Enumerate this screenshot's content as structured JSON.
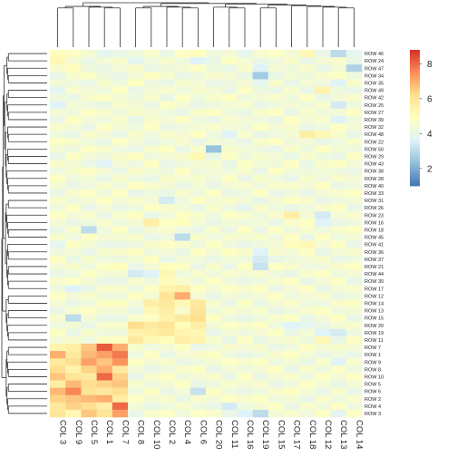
{
  "chart_data": {
    "type": "heatmap",
    "title": "",
    "xlabel": "",
    "ylabel": "",
    "columns": [
      "COL 3",
      "COL 9",
      "COL 5",
      "COL 1",
      "COL 7",
      "COL 8",
      "COL 10",
      "COL 2",
      "COL 4",
      "COL 6",
      "COL 20",
      "COL 11",
      "COL 16",
      "COL 19",
      "COL 15",
      "COL 17",
      "COL 18",
      "COL 12",
      "COL 13",
      "COL 14"
    ],
    "rows": [
      "ROW 46",
      "ROW 24",
      "ROW 47",
      "ROW 34",
      "ROW 35",
      "ROW 49",
      "ROW 42",
      "ROW 25",
      "ROW 27",
      "ROW 39",
      "ROW 32",
      "ROW 48",
      "ROW 22",
      "ROW 50",
      "ROW 29",
      "ROW 43",
      "ROW 38",
      "ROW 28",
      "ROW 40",
      "ROW 33",
      "ROW 31",
      "ROW 26",
      "ROW 23",
      "ROW 16",
      "ROW 18",
      "ROW 45",
      "ROW 41",
      "ROW 36",
      "ROW 37",
      "ROW 21",
      "ROW 44",
      "ROW 30",
      "ROW 17",
      "ROW 12",
      "ROW 14",
      "ROW 13",
      "ROW 15",
      "ROW 20",
      "ROW 19",
      "ROW 11",
      "ROW 7",
      "ROW 1",
      "ROW 9",
      "ROW 8",
      "ROW 10",
      "ROW 5",
      "ROW 6",
      "ROW 2",
      "ROW 4",
      "ROW 3"
    ],
    "values": [
      [
        5.0,
        4.8,
        4.5,
        3.8,
        4.0,
        4.2,
        4.6,
        4.0,
        4.8,
        5.0,
        4.2,
        4.4,
        3.8,
        4.6,
        4.8,
        4.4,
        5.2,
        4.0,
        3.0,
        3.8
      ],
      [
        5.2,
        4.4,
        4.0,
        4.4,
        4.6,
        3.8,
        4.2,
        4.6,
        4.2,
        3.6,
        4.0,
        4.8,
        4.4,
        4.0,
        4.2,
        4.6,
        4.0,
        4.4,
        4.6,
        4.0
      ],
      [
        4.6,
        5.0,
        4.2,
        4.0,
        4.4,
        4.6,
        4.0,
        4.2,
        4.4,
        4.8,
        4.2,
        4.0,
        4.6,
        3.6,
        4.4,
        4.2,
        4.6,
        4.0,
        4.4,
        2.8
      ],
      [
        4.0,
        4.6,
        4.8,
        4.2,
        4.0,
        4.4,
        4.8,
        4.6,
        4.0,
        4.2,
        4.6,
        4.4,
        4.0,
        2.6,
        4.0,
        4.4,
        4.2,
        4.6,
        4.8,
        4.2
      ],
      [
        4.4,
        4.2,
        4.0,
        4.6,
        4.2,
        4.8,
        4.2,
        4.0,
        4.6,
        4.4,
        4.0,
        4.2,
        4.4,
        3.8,
        4.6,
        4.0,
        4.4,
        4.2,
        3.6,
        4.6
      ],
      [
        3.8,
        4.6,
        4.4,
        4.2,
        4.8,
        4.0,
        4.4,
        4.6,
        4.2,
        4.6,
        4.4,
        4.0,
        4.8,
        4.2,
        4.0,
        4.6,
        4.0,
        5.4,
        4.2,
        4.0
      ],
      [
        4.2,
        4.0,
        4.6,
        4.8,
        4.4,
        4.2,
        4.6,
        4.0,
        4.8,
        4.2,
        4.6,
        4.8,
        4.2,
        4.4,
        4.6,
        4.2,
        4.8,
        4.0,
        4.4,
        4.6
      ],
      [
        3.6,
        4.4,
        4.2,
        4.0,
        4.6,
        4.4,
        4.0,
        4.8,
        4.4,
        4.0,
        4.2,
        4.4,
        4.6,
        4.0,
        4.2,
        4.4,
        4.2,
        4.6,
        3.4,
        4.2
      ],
      [
        4.4,
        4.2,
        4.8,
        4.6,
        4.2,
        4.6,
        4.4,
        4.2,
        4.0,
        4.6,
        4.8,
        4.2,
        4.0,
        4.6,
        4.8,
        4.0,
        4.6,
        4.2,
        4.4,
        4.8
      ],
      [
        4.0,
        4.8,
        4.4,
        4.2,
        4.6,
        4.0,
        4.6,
        4.4,
        4.8,
        4.2,
        4.0,
        4.6,
        4.4,
        4.2,
        4.0,
        4.8,
        4.4,
        4.6,
        3.6,
        4.2
      ],
      [
        4.6,
        4.4,
        4.0,
        4.8,
        4.4,
        4.2,
        4.8,
        4.0,
        4.2,
        4.4,
        4.6,
        4.4,
        4.2,
        4.8,
        4.4,
        4.6,
        4.0,
        4.2,
        4.8,
        4.4
      ],
      [
        4.2,
        4.0,
        4.6,
        4.4,
        4.0,
        4.6,
        4.2,
        4.6,
        4.4,
        4.8,
        4.2,
        3.6,
        4.6,
        4.0,
        4.2,
        4.4,
        5.6,
        5.2,
        4.6,
        4.0
      ],
      [
        4.8,
        4.6,
        4.2,
        4.0,
        4.8,
        4.4,
        4.0,
        4.2,
        4.6,
        4.0,
        4.4,
        4.2,
        4.0,
        4.6,
        4.8,
        4.2,
        4.4,
        4.0,
        4.2,
        4.6
      ],
      [
        4.4,
        4.2,
        4.8,
        4.6,
        4.2,
        4.0,
        4.6,
        4.8,
        4.0,
        4.6,
        2.4,
        4.6,
        4.4,
        4.2,
        4.0,
        4.6,
        4.2,
        4.8,
        4.4,
        4.2
      ],
      [
        4.0,
        4.8,
        4.4,
        4.2,
        4.6,
        4.8,
        4.2,
        4.4,
        4.6,
        5.2,
        4.0,
        4.8,
        4.2,
        4.6,
        4.4,
        4.0,
        4.6,
        4.2,
        4.0,
        4.8
      ],
      [
        4.6,
        4.4,
        4.0,
        3.6,
        4.4,
        4.2,
        4.8,
        4.0,
        4.2,
        4.4,
        4.6,
        4.0,
        4.8,
        4.4,
        4.2,
        4.8,
        4.0,
        4.6,
        4.8,
        4.4
      ],
      [
        4.2,
        4.6,
        4.8,
        4.4,
        4.0,
        4.6,
        4.4,
        4.2,
        4.8,
        4.2,
        4.4,
        4.2,
        4.6,
        4.0,
        4.8,
        4.4,
        4.2,
        4.4,
        4.2,
        4.0
      ],
      [
        4.8,
        4.2,
        4.4,
        4.0,
        4.6,
        4.2,
        4.0,
        4.6,
        4.4,
        4.6,
        4.2,
        4.8,
        4.0,
        4.6,
        4.2,
        4.0,
        4.6,
        4.2,
        4.6,
        4.4
      ],
      [
        4.4,
        4.0,
        4.2,
        4.6,
        4.2,
        4.8,
        4.6,
        4.4,
        4.0,
        4.4,
        4.0,
        4.4,
        4.6,
        4.2,
        4.6,
        4.6,
        4.4,
        4.8,
        4.0,
        4.2
      ],
      [
        4.0,
        4.6,
        4.8,
        4.2,
        4.8,
        4.0,
        4.2,
        4.0,
        4.6,
        4.2,
        4.8,
        4.0,
        4.2,
        4.8,
        4.0,
        4.2,
        4.0,
        4.4,
        4.6,
        4.8
      ],
      [
        4.6,
        4.2,
        4.4,
        4.8,
        4.4,
        4.6,
        4.4,
        3.4,
        4.2,
        4.8,
        4.4,
        4.6,
        4.4,
        4.0,
        4.4,
        4.8,
        4.6,
        4.0,
        4.2,
        4.4
      ],
      [
        4.2,
        4.8,
        4.0,
        4.4,
        4.0,
        4.2,
        4.8,
        4.6,
        4.4,
        4.0,
        4.6,
        4.2,
        3.8,
        4.6,
        4.2,
        4.0,
        4.2,
        4.6,
        4.8,
        4.0
      ],
      [
        4.8,
        4.4,
        4.6,
        4.0,
        4.6,
        4.8,
        4.0,
        4.2,
        4.8,
        4.6,
        4.2,
        4.8,
        4.6,
        4.2,
        4.6,
        5.6,
        4.4,
        3.4,
        4.4,
        4.6
      ],
      [
        4.4,
        4.0,
        4.2,
        4.6,
        4.2,
        4.4,
        5.6,
        4.8,
        5.0,
        4.4,
        4.0,
        4.4,
        4.2,
        4.4,
        4.0,
        4.6,
        4.8,
        3.6,
        4.0,
        4.2
      ],
      [
        4.0,
        4.6,
        3.0,
        4.2,
        4.8,
        4.0,
        4.4,
        4.6,
        4.2,
        4.0,
        4.6,
        4.0,
        4.8,
        4.0,
        4.8,
        4.2,
        4.6,
        4.2,
        4.6,
        4.8
      ],
      [
        4.6,
        4.2,
        4.8,
        4.4,
        4.4,
        4.6,
        4.0,
        4.2,
        3.0,
        4.6,
        4.2,
        4.6,
        4.4,
        4.6,
        4.2,
        4.8,
        4.0,
        4.8,
        4.2,
        4.4
      ],
      [
        3.8,
        4.8,
        4.4,
        4.0,
        4.0,
        4.2,
        4.6,
        4.8,
        4.6,
        4.2,
        4.8,
        4.2,
        4.0,
        4.2,
        4.4,
        5.0,
        5.2,
        4.4,
        4.8,
        4.0
      ],
      [
        4.2,
        4.4,
        4.0,
        4.6,
        4.6,
        4.8,
        4.2,
        4.4,
        4.0,
        4.8,
        4.4,
        4.8,
        4.6,
        3.6,
        4.6,
        4.4,
        4.8,
        4.0,
        4.4,
        4.6
      ],
      [
        4.8,
        4.0,
        4.6,
        4.2,
        4.2,
        4.4,
        4.8,
        4.0,
        4.4,
        4.4,
        4.0,
        4.4,
        4.2,
        3.4,
        4.0,
        4.2,
        4.4,
        4.6,
        4.0,
        4.2
      ],
      [
        4.4,
        4.6,
        4.2,
        4.8,
        5.0,
        4.0,
        4.4,
        5.0,
        4.8,
        4.0,
        4.6,
        4.0,
        4.8,
        3.2,
        4.8,
        4.6,
        4.2,
        4.2,
        4.6,
        4.8
      ],
      [
        4.0,
        4.2,
        4.8,
        4.4,
        4.4,
        3.4,
        3.6,
        5.2,
        4.2,
        4.6,
        4.2,
        4.6,
        4.4,
        4.6,
        4.2,
        4.0,
        4.6,
        4.8,
        4.2,
        4.4
      ],
      [
        4.6,
        4.8,
        4.4,
        4.0,
        4.0,
        4.6,
        4.2,
        5.0,
        4.6,
        4.2,
        4.8,
        4.2,
        4.0,
        4.2,
        4.6,
        4.8,
        4.0,
        4.4,
        4.8,
        4.0
      ],
      [
        4.2,
        3.6,
        4.0,
        4.6,
        4.6,
        4.2,
        4.8,
        5.4,
        5.6,
        4.8,
        4.4,
        4.8,
        4.6,
        4.8,
        4.0,
        4.4,
        4.8,
        4.0,
        4.4,
        4.6
      ],
      [
        4.8,
        4.4,
        4.6,
        4.2,
        4.2,
        4.8,
        4.4,
        6.0,
        7.0,
        4.4,
        4.0,
        4.4,
        4.2,
        4.4,
        4.8,
        4.2,
        4.4,
        4.6,
        4.0,
        4.2
      ],
      [
        4.4,
        4.0,
        4.2,
        4.8,
        4.8,
        4.4,
        5.6,
        5.8,
        5.2,
        5.8,
        4.6,
        4.0,
        4.8,
        4.0,
        4.4,
        4.6,
        4.2,
        4.2,
        4.6,
        4.8
      ],
      [
        4.0,
        4.6,
        4.8,
        4.4,
        4.4,
        4.0,
        5.2,
        5.6,
        4.6,
        6.0,
        4.2,
        4.6,
        4.4,
        4.6,
        4.0,
        4.2,
        4.6,
        4.8,
        4.2,
        4.4
      ],
      [
        4.6,
        3.0,
        4.4,
        4.0,
        4.0,
        4.6,
        4.8,
        5.4,
        5.8,
        6.2,
        4.8,
        4.2,
        4.0,
        4.2,
        4.6,
        4.8,
        4.0,
        4.4,
        4.8,
        4.0
      ],
      [
        4.2,
        4.4,
        4.0,
        4.6,
        4.6,
        6.2,
        5.8,
        6.0,
        5.0,
        5.6,
        4.4,
        4.8,
        4.6,
        4.8,
        4.2,
        3.6,
        3.8,
        4.0,
        4.4,
        4.6
      ],
      [
        4.8,
        4.0,
        4.6,
        4.2,
        4.2,
        5.4,
        5.6,
        5.8,
        5.4,
        5.2,
        4.0,
        4.4,
        4.2,
        4.4,
        4.8,
        4.0,
        4.4,
        3.6,
        3.4,
        4.2
      ],
      [
        4.4,
        4.6,
        4.2,
        4.8,
        4.8,
        5.8,
        5.2,
        5.0,
        5.6,
        5.4,
        4.6,
        4.0,
        4.8,
        4.0,
        4.4,
        4.6,
        4.2,
        5.2,
        4.0,
        4.8
      ],
      [
        5.4,
        5.6,
        6.6,
        8.2,
        7.0,
        4.6,
        4.2,
        4.4,
        4.8,
        4.0,
        4.2,
        4.6,
        4.4,
        4.6,
        4.0,
        4.2,
        4.8,
        4.4,
        4.6,
        4.4
      ],
      [
        7.0,
        5.8,
        6.8,
        7.2,
        7.8,
        4.2,
        4.8,
        4.0,
        4.4,
        4.6,
        4.8,
        4.2,
        4.0,
        4.2,
        4.6,
        4.8,
        4.4,
        4.0,
        4.2,
        4.0
      ],
      [
        5.8,
        6.2,
        7.2,
        6.6,
        7.4,
        4.8,
        4.4,
        4.6,
        4.0,
        4.2,
        4.4,
        4.8,
        4.6,
        4.8,
        4.2,
        4.4,
        4.0,
        4.6,
        3.6,
        4.6
      ],
      [
        6.2,
        5.4,
        6.4,
        7.0,
        5.8,
        4.4,
        4.0,
        4.2,
        4.6,
        4.8,
        4.0,
        4.4,
        4.2,
        4.4,
        4.8,
        4.0,
        4.6,
        4.2,
        4.8,
        4.2
      ],
      [
        6.6,
        6.0,
        5.8,
        8.0,
        6.4,
        4.0,
        4.6,
        4.8,
        4.2,
        4.4,
        4.6,
        4.0,
        4.8,
        4.0,
        4.4,
        4.6,
        4.2,
        4.8,
        4.4,
        4.8
      ],
      [
        5.6,
        6.8,
        6.2,
        6.4,
        6.6,
        4.6,
        4.2,
        4.4,
        4.8,
        4.0,
        4.2,
        4.6,
        4.4,
        4.6,
        4.0,
        4.2,
        4.8,
        4.4,
        4.0,
        4.4
      ],
      [
        6.8,
        7.6,
        6.0,
        5.8,
        6.2,
        4.2,
        4.8,
        4.0,
        4.4,
        3.2,
        4.8,
        4.2,
        4.0,
        4.2,
        4.6,
        4.8,
        4.4,
        4.0,
        4.6,
        4.0
      ],
      [
        6.4,
        6.6,
        6.8,
        7.0,
        5.6,
        4.8,
        4.4,
        4.6,
        4.0,
        4.6,
        4.4,
        4.8,
        4.6,
        4.8,
        4.2,
        4.4,
        4.0,
        4.6,
        4.2,
        4.6
      ],
      [
        5.8,
        6.4,
        6.2,
        5.6,
        8.0,
        4.4,
        4.0,
        4.2,
        4.6,
        4.2,
        4.0,
        3.4,
        4.2,
        4.4,
        4.8,
        4.0,
        4.6,
        4.2,
        4.8,
        4.2
      ],
      [
        6.0,
        5.2,
        6.6,
        6.0,
        7.2,
        4.0,
        4.6,
        4.8,
        4.2,
        4.8,
        4.6,
        4.0,
        3.6,
        3.0,
        4.4,
        4.6,
        4.2,
        4.8,
        3.8,
        4.8
      ]
    ],
    "colorbar": {
      "ticks": [
        2,
        4,
        6,
        8
      ],
      "min": 1.0,
      "max": 8.8,
      "colors": [
        "#4575b4",
        "#91bfdb",
        "#e0f3f8",
        "#ffffbf",
        "#fee090",
        "#fc8d59",
        "#d73027"
      ]
    }
  }
}
